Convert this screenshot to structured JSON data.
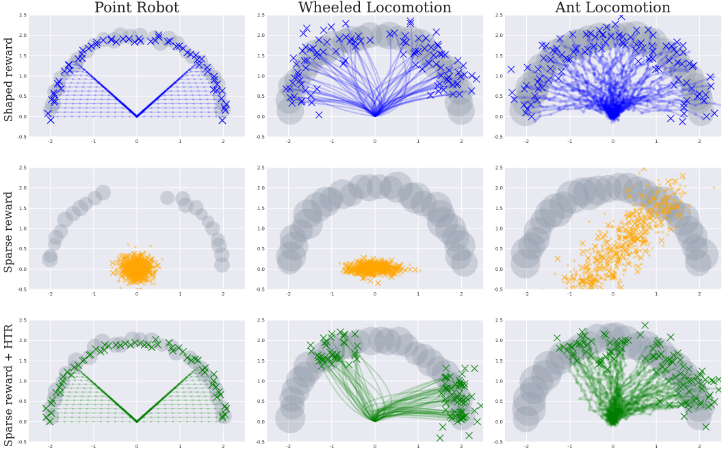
{
  "column_titles": [
    "Point Robot",
    "Wheeled Locomotion",
    "Ant Locomotion"
  ],
  "row_labels": [
    "Shaped reward",
    "Sparse reward",
    "Sparse reward + HTR"
  ],
  "colors": {
    "panel_bg": "#e9e9f1",
    "goal_circle": "#8f9aa8",
    "shaped": "#0000ff",
    "sparse": "#ffa500",
    "htr": "#008000"
  },
  "chart_data": [
    {
      "type": "scatter",
      "row": "Shaped reward",
      "column": "Point Robot",
      "color": "#0000ff",
      "xlim": [
        -2.5,
        2.5
      ],
      "ylim": [
        -0.5,
        2.5
      ],
      "xticks": [
        -2,
        -1,
        0,
        1,
        2
      ],
      "yticks": [
        -0.5,
        0.0,
        0.5,
        1.0,
        1.5,
        2.0,
        2.5
      ],
      "grid": true,
      "goal_arc": {
        "radius": 2.0,
        "angle_start_deg": 0,
        "angle_end_deg": 180
      },
      "endpoints": "trajectories spread along an inverted-V / flat top at y≈1.9, endpoints marked with x"
    },
    {
      "type": "scatter",
      "row": "Shaped reward",
      "column": "Wheeled Locomotion",
      "color": "#0000ff",
      "xlim": [
        -2.5,
        2.5
      ],
      "ylim": [
        -0.5,
        2.5
      ],
      "xticks": [
        -2,
        -1,
        0,
        1,
        2
      ],
      "yticks": [
        -0.5,
        0.0,
        0.5,
        1.0,
        1.5,
        2.0,
        2.5
      ],
      "grid": true,
      "goal_arc": {
        "radius": 2.0,
        "angle_start_deg": 0,
        "angle_end_deg": 180
      },
      "endpoints": "trajectories fan out from origin to both sides of the arc"
    },
    {
      "type": "scatter",
      "row": "Shaped reward",
      "column": "Ant Locomotion",
      "color": "#0000ff",
      "xlim": [
        -2.5,
        2.5
      ],
      "ylim": [
        -0.5,
        2.5
      ],
      "xticks": [
        -2,
        -1,
        0,
        1,
        2
      ],
      "yticks": [
        -0.5,
        0.0,
        0.5,
        1.0,
        1.5,
        2.0,
        2.5
      ],
      "grid": true,
      "goal_arc": {
        "radius": 2.0,
        "angle_start_deg": 0,
        "angle_end_deg": 180
      },
      "endpoints": "dense cloud covering the arc region"
    },
    {
      "type": "scatter",
      "row": "Sparse reward",
      "column": "Point Robot",
      "color": "#ffa500",
      "xlim": [
        -2.5,
        2.5
      ],
      "ylim": [
        -0.5,
        2.5
      ],
      "xticks": [
        -2,
        -1,
        0,
        1,
        2
      ],
      "yticks": [
        -0.5,
        0.0,
        0.5,
        1.0,
        1.5,
        2.0,
        2.5
      ],
      "grid": true,
      "goal_arc": {
        "radius": 2.0,
        "angle_start_deg": 0,
        "angle_end_deg": 180
      },
      "endpoints": "cluster around (0,0) radius ≈0.5"
    },
    {
      "type": "scatter",
      "row": "Sparse reward",
      "column": "Wheeled Locomotion",
      "color": "#ffa500",
      "xlim": [
        -2.5,
        2.5
      ],
      "ylim": [
        -0.5,
        2.5
      ],
      "xticks": [
        -2,
        -1,
        0,
        1,
        2
      ],
      "yticks": [
        -0.5,
        0.0,
        0.5,
        1.0,
        1.5,
        2.0,
        2.5
      ],
      "grid": true,
      "goal_arc": {
        "radius": 2.0,
        "angle_start_deg": 0,
        "angle_end_deg": 180
      },
      "endpoints": "cluster around (0,0), x from -0.7 to 0.6"
    },
    {
      "type": "scatter",
      "row": "Sparse reward",
      "column": "Ant Locomotion",
      "color": "#ffa500",
      "xlim": [
        -2.5,
        2.5
      ],
      "ylim": [
        -0.5,
        2.5
      ],
      "xticks": [
        -2,
        -1,
        0,
        1,
        2
      ],
      "yticks": [
        -0.5,
        0.0,
        0.5,
        1.0,
        1.5,
        2.0,
        2.5
      ],
      "grid": true,
      "goal_arc": {
        "radius": 2.0,
        "angle_start_deg": 0,
        "angle_end_deg": 180
      },
      "endpoints": "diagonal band from (-0.8,-0.5) to (1.2,2.0)"
    },
    {
      "type": "scatter",
      "row": "Sparse reward + HTR",
      "column": "Point Robot",
      "color": "#008000",
      "xlim": [
        -2.5,
        2.5
      ],
      "ylim": [
        -0.5,
        2.5
      ],
      "xticks": [
        -2,
        -1,
        0,
        1,
        2
      ],
      "yticks": [
        -0.5,
        0.0,
        0.5,
        1.0,
        1.5,
        2.0,
        2.5
      ],
      "grid": true,
      "goal_arc": {
        "radius": 2.0,
        "angle_start_deg": 0,
        "angle_end_deg": 180
      },
      "endpoints": "full fan covering the arc, flat top at y≈1.9"
    },
    {
      "type": "scatter",
      "row": "Sparse reward + HTR",
      "column": "Wheeled Locomotion",
      "color": "#008000",
      "xlim": [
        -2.5,
        2.5
      ],
      "ylim": [
        -0.5,
        2.5
      ],
      "xticks": [
        -2,
        -1,
        0,
        1,
        2
      ],
      "yticks": [
        -0.5,
        0.0,
        0.5,
        1.0,
        1.5,
        2.0,
        2.5
      ],
      "grid": true,
      "goal_arc": {
        "radius": 2.0,
        "angle_start_deg": 0,
        "angle_end_deg": 180
      },
      "endpoints": "trajectories spread to upper-left and right of the arc"
    },
    {
      "type": "scatter",
      "row": "Sparse reward + HTR",
      "column": "Ant Locomotion",
      "color": "#008000",
      "xlim": [
        -2.5,
        2.5
      ],
      "ylim": [
        -0.5,
        2.5
      ],
      "xticks": [
        -2,
        -1,
        0,
        1,
        2
      ],
      "yticks": [
        -0.5,
        0.0,
        0.5,
        1.0,
        1.5,
        2.0,
        2.5
      ],
      "grid": true,
      "goal_arc": {
        "radius": 2.0,
        "angle_start_deg": 0,
        "angle_end_deg": 180
      },
      "endpoints": "dense along upper and right portions of the arc"
    }
  ]
}
